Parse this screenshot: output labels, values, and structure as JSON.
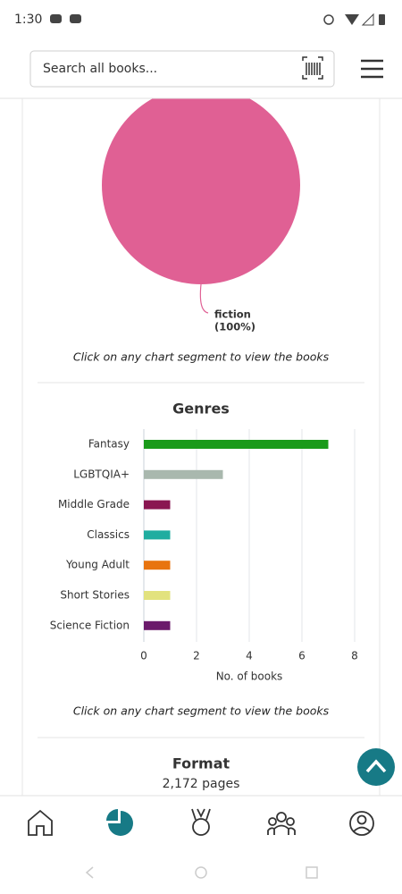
{
  "status_bar": {
    "time": "1:30"
  },
  "search": {
    "placeholder": "Search all books..."
  },
  "chart_data": [
    {
      "type": "pie",
      "categories": [
        "fiction"
      ],
      "values": [
        100
      ],
      "value_labels": [
        "(100%)"
      ],
      "colors": [
        "#e06094"
      ],
      "caption": "Click on any chart segment to view the books"
    },
    {
      "type": "bar",
      "orientation": "horizontal",
      "title": "Genres",
      "categories": [
        "Fantasy",
        "LGBTQIA+",
        "Middle Grade",
        "Classics",
        "Young Adult",
        "Short Stories",
        "Science Fiction"
      ],
      "values": [
        7,
        3,
        1,
        1,
        1,
        1,
        1
      ],
      "colors": [
        "#1a9a1a",
        "#a9b8ae",
        "#8a1651",
        "#1fada0",
        "#e8740f",
        "#e2e27e",
        "#6b1a6b"
      ],
      "xlim": [
        0,
        8
      ],
      "xticks": [
        0,
        2,
        4,
        6,
        8
      ],
      "xlabel": "No. of books",
      "grid": true,
      "caption": "Click on any chart segment to view the books"
    }
  ],
  "format": {
    "title": "Format",
    "pages": "2,172 pages"
  }
}
